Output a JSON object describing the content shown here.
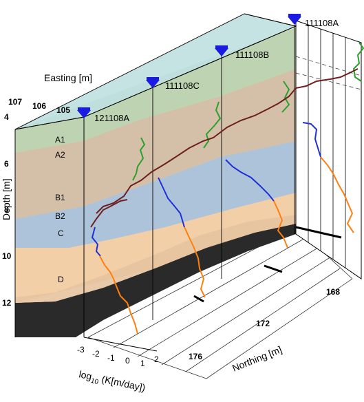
{
  "axes": {
    "easting": {
      "label": "Easting [m]",
      "ticks": [
        "107",
        "106",
        "105"
      ]
    },
    "depth": {
      "label": "Depth [m]",
      "ticks": [
        "4",
        "6",
        "8",
        "10",
        "12"
      ]
    },
    "northing": {
      "label": "Northing [m]",
      "ticks": [
        "168",
        "172",
        "176"
      ]
    },
    "conductivity": {
      "label_base": "log",
      "label_sub": "10",
      "label_rest": " (K[m/day])",
      "ticks": [
        "-3",
        "-2",
        "-1",
        "0",
        "1",
        "2"
      ]
    }
  },
  "boreholes": [
    "111108A",
    "111108B",
    "111108C",
    "121108A"
  ],
  "layers": [
    "A1",
    "A2",
    "B1",
    "B2",
    "C",
    "D"
  ],
  "colors": {
    "layer_A": "#b9d3b1",
    "layer_B": "#d2bfa8",
    "layer_C": "#a9c2dc",
    "layer_D": "#f3cfa7",
    "bedrock": "#2a2a2a",
    "top": "#bfe1e0",
    "marker": "#1a1ae0",
    "green_profile": "#2ca02c",
    "brown_profile": "#6b1f1f",
    "blue_profile": "#1f2fd6",
    "orange_profile": "#ff7f0e"
  }
}
